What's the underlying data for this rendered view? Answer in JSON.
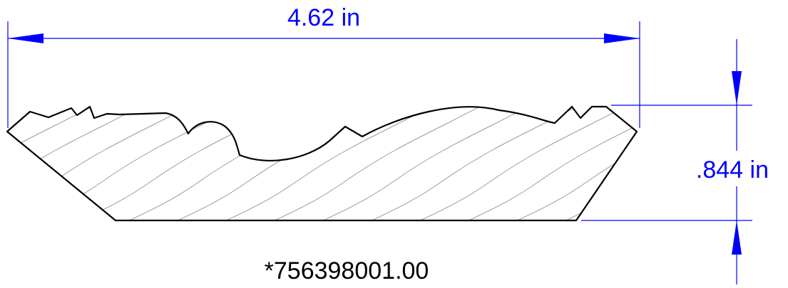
{
  "dimensions": {
    "width_label": "4.62 in",
    "height_label": ".844 in"
  },
  "part_number": "*756398001.00",
  "colors": {
    "dimension": "#0000ff",
    "outline": "#000000",
    "hatch": "#9a9a9a"
  }
}
